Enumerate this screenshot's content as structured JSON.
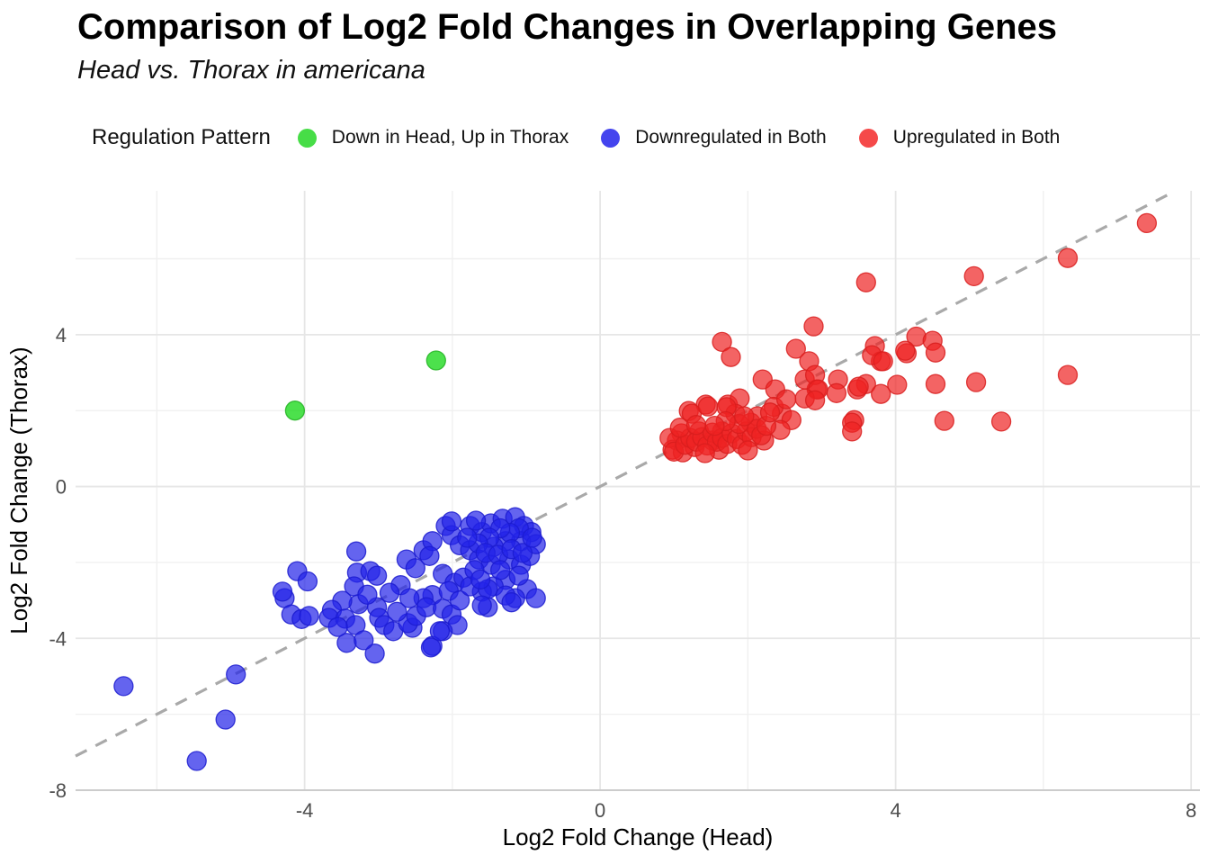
{
  "title": "Comparison of Log2 Fold Changes in Overlapping Genes",
  "subtitle": "Head vs. Thorax in americana",
  "legend": {
    "title": "Regulation Pattern",
    "items": [
      {
        "label": "Down in Head, Up in Thorax",
        "color": "#47dd47"
      },
      {
        "label": "Downregulated in Both",
        "color": "#4444ee"
      },
      {
        "label": "Upregulated in Both",
        "color": "#f54949"
      }
    ]
  },
  "chart_data": {
    "type": "scatter",
    "title": "Comparison of Log2 Fold Changes in Overlapping Genes",
    "subtitle": "Head vs. Thorax in americana",
    "xlabel": "Log2 Fold Change (Head)",
    "ylabel": "Log2 Fold Change (Thorax)",
    "xlim": [
      -7.1,
      8.12
    ],
    "ylim": [
      -8.0,
      7.79
    ],
    "x_ticks": [
      -4,
      0,
      4,
      8
    ],
    "y_ticks": [
      -8,
      -4,
      0,
      4
    ],
    "x_minor_ticks": [
      -6,
      -2,
      2,
      6
    ],
    "y_minor_ticks": [
      -6,
      -2,
      2,
      6
    ],
    "grid": true,
    "legend_position": "top",
    "reference_line": {
      "type": "identity",
      "slope": 1,
      "intercept": 0,
      "style": "dashed",
      "color": "#a9a9a9"
    },
    "series": [
      {
        "name": "Down in Head, Up in Thorax",
        "color": "#00d400",
        "stroke": "#22b122",
        "points": [
          [
            -4.13,
            2.0
          ],
          [
            -2.22,
            3.32
          ]
        ]
      },
      {
        "name": "Downregulated in Both",
        "color": "#2222e8",
        "stroke": "#1b1bcf",
        "points": [
          [
            -6.45,
            -5.26
          ],
          [
            -5.46,
            -7.23
          ],
          [
            -5.07,
            -6.14
          ],
          [
            -4.93,
            -4.95
          ],
          [
            -4.27,
            -2.94
          ],
          [
            -4.3,
            -2.77
          ],
          [
            -4.1,
            -2.23
          ],
          [
            -3.96,
            -2.5
          ],
          [
            -4.18,
            -3.37
          ],
          [
            -4.04,
            -3.49
          ],
          [
            -3.94,
            -3.41
          ],
          [
            -3.3,
            -1.71
          ],
          [
            -3.29,
            -2.27
          ],
          [
            -3.11,
            -2.23
          ],
          [
            -3.02,
            -2.35
          ],
          [
            -3.33,
            -2.63
          ],
          [
            -3.27,
            -3.1
          ],
          [
            -3.49,
            -3.01
          ],
          [
            -3.63,
            -3.25
          ],
          [
            -3.67,
            -3.46
          ],
          [
            -3.45,
            -3.48
          ],
          [
            -3.31,
            -3.65
          ],
          [
            -3.02,
            -3.18
          ],
          [
            -2.99,
            -3.46
          ],
          [
            -2.92,
            -3.65
          ],
          [
            -3.43,
            -4.12
          ],
          [
            -3.05,
            -4.4
          ],
          [
            -3.2,
            -4.05
          ],
          [
            -3.55,
            -3.7
          ],
          [
            -2.8,
            -3.81
          ],
          [
            -2.54,
            -3.72
          ],
          [
            -2.6,
            -3.6
          ],
          [
            -2.75,
            -3.3
          ],
          [
            -2.7,
            -2.6
          ],
          [
            -2.85,
            -2.8
          ],
          [
            -3.15,
            -2.85
          ],
          [
            -2.62,
            -1.92
          ],
          [
            -2.5,
            -2.15
          ],
          [
            -2.39,
            -1.68
          ],
          [
            -2.27,
            -1.44
          ],
          [
            -2.09,
            -1.04
          ],
          [
            -2.01,
            -1.28
          ],
          [
            -2.31,
            -1.83
          ],
          [
            -2.13,
            -2.3
          ],
          [
            -1.97,
            -2.54
          ],
          [
            -2.27,
            -2.86
          ],
          [
            -2.39,
            -2.94
          ],
          [
            -2.58,
            -2.94
          ],
          [
            -2.49,
            -3.41
          ],
          [
            -2.35,
            -3.18
          ],
          [
            -2.13,
            -3.22
          ],
          [
            -2.01,
            -3.37
          ],
          [
            -1.93,
            -3.65
          ],
          [
            -2.13,
            -3.81
          ],
          [
            -2.27,
            -4.2
          ],
          [
            -2.29,
            -4.24
          ],
          [
            -2.17,
            -3.81
          ],
          [
            -2.05,
            -2.75
          ],
          [
            -1.9,
            -3.0
          ],
          [
            -1.9,
            -1.55
          ],
          [
            -1.85,
            -2.4
          ],
          [
            -1.76,
            -1.04
          ],
          [
            -1.6,
            -1.2
          ],
          [
            -1.48,
            -0.97
          ],
          [
            -1.32,
            -0.85
          ],
          [
            -1.15,
            -0.81
          ],
          [
            -1.03,
            -1.04
          ],
          [
            -0.93,
            -1.2
          ],
          [
            -1.07,
            -1.44
          ],
          [
            -1.28,
            -1.44
          ],
          [
            -1.44,
            -1.59
          ],
          [
            -1.76,
            -1.68
          ],
          [
            -1.64,
            -1.92
          ],
          [
            -1.48,
            -2.06
          ],
          [
            -1.23,
            -1.92
          ],
          [
            -1.07,
            -2.06
          ],
          [
            -0.95,
            -1.83
          ],
          [
            -0.87,
            -1.52
          ],
          [
            -1.28,
            -2.46
          ],
          [
            -1.44,
            -2.63
          ],
          [
            -1.6,
            -2.77
          ],
          [
            -1.76,
            -2.63
          ],
          [
            -1.52,
            -3.18
          ],
          [
            -0.99,
            -2.7
          ],
          [
            -1.15,
            -2.94
          ],
          [
            -0.87,
            -2.94
          ],
          [
            -1.52,
            -2.7
          ],
          [
            -1.28,
            -2.87
          ],
          [
            -1.2,
            -3.05
          ],
          [
            -1.6,
            -3.13
          ],
          [
            -1.1,
            -1.1
          ],
          [
            -1.22,
            -1.22
          ],
          [
            -1.35,
            -1.1
          ],
          [
            -1.5,
            -1.35
          ],
          [
            -1.65,
            -1.5
          ],
          [
            -1.8,
            -1.35
          ],
          [
            -1.55,
            -1.75
          ],
          [
            -1.38,
            -1.8
          ],
          [
            -1.2,
            -1.65
          ],
          [
            -1.05,
            -1.75
          ],
          [
            -0.92,
            -1.35
          ],
          [
            -1.7,
            -2.2
          ],
          [
            -1.35,
            -2.2
          ],
          [
            -1.1,
            -2.35
          ],
          [
            -1.62,
            -2.45
          ],
          [
            -2.01,
            -0.92
          ],
          [
            -1.68,
            -0.9
          ]
        ]
      },
      {
        "name": "Upregulated in Both",
        "color": "#ee2222",
        "stroke": "#d81d1d",
        "points": [
          [
            7.4,
            6.94
          ],
          [
            6.33,
            6.02
          ],
          [
            5.06,
            5.54
          ],
          [
            3.6,
            5.38
          ],
          [
            2.89,
            4.22
          ],
          [
            4.28,
            3.95
          ],
          [
            4.5,
            3.84
          ],
          [
            4.54,
            3.53
          ],
          [
            4.15,
            3.51
          ],
          [
            3.72,
            3.7
          ],
          [
            3.8,
            3.3
          ],
          [
            6.33,
            2.94
          ],
          [
            5.09,
            2.75
          ],
          [
            4.66,
            1.73
          ],
          [
            5.43,
            1.71
          ],
          [
            3.44,
            1.75
          ],
          [
            1.65,
            3.81
          ],
          [
            1.77,
            3.41
          ],
          [
            2.65,
            3.63
          ],
          [
            2.83,
            3.3
          ],
          [
            3.68,
            3.46
          ],
          [
            3.83,
            3.3
          ],
          [
            4.13,
            3.58
          ],
          [
            3.22,
            2.82
          ],
          [
            3.6,
            2.7
          ],
          [
            4.02,
            2.68
          ],
          [
            4.54,
            2.7
          ],
          [
            3.48,
            2.56
          ],
          [
            3.8,
            2.44
          ],
          [
            2.93,
            2.56
          ],
          [
            2.2,
            2.82
          ],
          [
            2.37,
            2.56
          ],
          [
            2.77,
            2.82
          ],
          [
            2.91,
            2.94
          ],
          [
            2.95,
            2.56
          ],
          [
            3.2,
            2.46
          ],
          [
            3.5,
            2.63
          ],
          [
            2.77,
            2.32
          ],
          [
            2.91,
            2.27
          ],
          [
            2.46,
            1.92
          ],
          [
            2.59,
            1.75
          ],
          [
            2.04,
            1.68
          ],
          [
            2.13,
            1.85
          ],
          [
            2.22,
            1.21
          ],
          [
            2.44,
            1.49
          ],
          [
            3.41,
            1.68
          ],
          [
            3.41,
            1.45
          ],
          [
            1.2,
            1.99
          ],
          [
            1.43,
            2.16
          ],
          [
            1.73,
            2.16
          ],
          [
            1.89,
            2.32
          ],
          [
            1.83,
            1.92
          ],
          [
            1.24,
            1.92
          ],
          [
            1.46,
            2.11
          ],
          [
            1.71,
            2.09
          ],
          [
            1.1,
            1.4
          ],
          [
            1.04,
            1.21
          ],
          [
            0.98,
            0.97
          ],
          [
            1.12,
            0.9
          ],
          [
            1.34,
            1.45
          ],
          [
            1.28,
            1.04
          ],
          [
            1.52,
            1.21
          ],
          [
            1.61,
            0.97
          ],
          [
            1.65,
            1.45
          ],
          [
            0.94,
            1.28
          ],
          [
            1.0,
            0.92
          ],
          [
            1.15,
            1.1
          ],
          [
            1.22,
            1.28
          ],
          [
            1.3,
            1.18
          ],
          [
            1.38,
            1.3
          ],
          [
            1.45,
            1.08
          ],
          [
            1.52,
            1.42
          ],
          [
            1.58,
            1.18
          ],
          [
            1.65,
            1.28
          ],
          [
            1.72,
            1.12
          ],
          [
            1.78,
            1.4
          ],
          [
            1.85,
            1.25
          ],
          [
            1.92,
            1.1
          ],
          [
            1.98,
            1.45
          ],
          [
            2.05,
            1.3
          ],
          [
            2.12,
            1.52
          ],
          [
            2.18,
            1.35
          ],
          [
            2.25,
            1.6
          ],
          [
            1.88,
            1.65
          ],
          [
            1.7,
            1.72
          ],
          [
            1.55,
            1.6
          ],
          [
            2.35,
            2.1
          ],
          [
            2.52,
            2.3
          ],
          [
            2.3,
            1.95
          ],
          [
            1.95,
            1.85
          ],
          [
            1.08,
            1.55
          ],
          [
            1.3,
            1.62
          ],
          [
            2.0,
            0.95
          ],
          [
            1.42,
            0.88
          ]
        ]
      }
    ]
  }
}
